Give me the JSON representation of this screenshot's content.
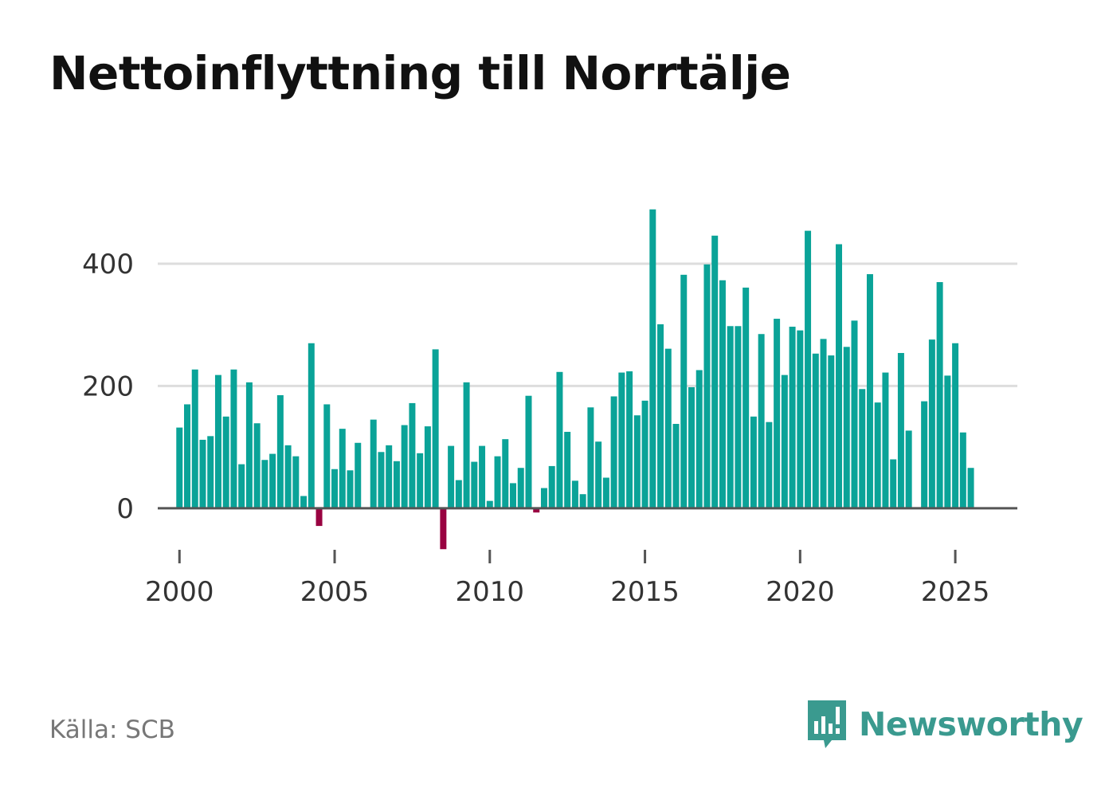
{
  "title": "Nettoinflyttning till Norrtälje",
  "source": "Källa: SCB",
  "brand": {
    "name": "Newsworthy",
    "icon": "newsworthy-logo-icon",
    "color": "#3a9a8f"
  },
  "colors": {
    "positive": "#0aa398",
    "negative": "#990341",
    "grid": "#dddddd",
    "axis": "#555555"
  },
  "chart_data": {
    "type": "bar",
    "title": "Nettoinflyttning till Norrtälje",
    "xlabel": "",
    "ylabel": "",
    "ylim": [
      -68,
      490
    ],
    "xlim": [
      1999.3,
      2027.0
    ],
    "yticks": [
      0,
      200,
      400
    ],
    "xticks": [
      2000,
      2005,
      2010,
      2015,
      2020,
      2025
    ],
    "grid": true,
    "start_year": 2000,
    "period": "quarter",
    "values": [
      132,
      170,
      227,
      112,
      118,
      218,
      150,
      227,
      72,
      206,
      139,
      79,
      89,
      185,
      103,
      85,
      20,
      270,
      -29,
      170,
      64,
      130,
      62,
      107,
      0,
      145,
      92,
      103,
      77,
      136,
      172,
      90,
      134,
      260,
      -67,
      102,
      46,
      206,
      76,
      102,
      12,
      85,
      113,
      41,
      66,
      184,
      -7,
      33,
      69,
      223,
      125,
      45,
      23,
      165,
      109,
      50,
      183,
      222,
      224,
      152,
      176,
      489,
      301,
      261,
      138,
      382,
      198,
      226,
      399,
      446,
      373,
      298,
      298,
      361,
      150,
      285,
      141,
      310,
      218,
      297,
      291,
      454,
      253,
      277,
      250,
      432,
      264,
      307,
      195,
      383,
      173,
      222,
      80,
      254,
      127,
      0,
      175,
      276,
      370,
      217,
      270,
      124,
      66
    ]
  }
}
